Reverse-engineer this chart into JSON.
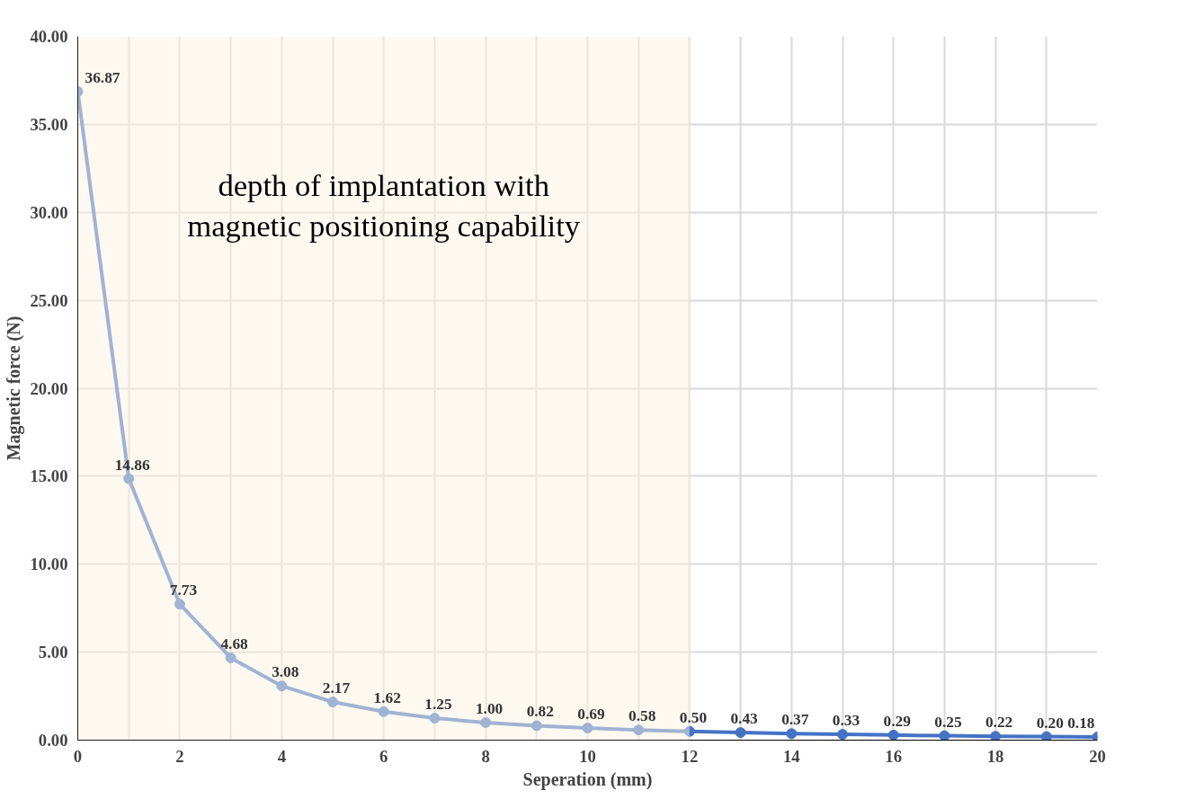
{
  "chart_data": {
    "type": "line",
    "xlabel": "Seperation (mm)",
    "ylabel": "Magnetic force (N)",
    "x": [
      0,
      1,
      2,
      3,
      4,
      5,
      6,
      7,
      8,
      9,
      10,
      11,
      12,
      13,
      14,
      15,
      16,
      17,
      18,
      19,
      20
    ],
    "series": [
      {
        "color": "#4472c4",
        "values": [
          36.87,
          14.86,
          7.73,
          4.68,
          3.08,
          2.17,
          1.62,
          1.25,
          1.0,
          0.82,
          0.69,
          0.58,
          0.5,
          0.43,
          0.37,
          0.33,
          0.29,
          0.25,
          0.22,
          0.2,
          0.18
        ],
        "value_labels": [
          "36.87",
          "14.86",
          "7.73",
          "4.68",
          "3.08",
          "2.17",
          "1.62",
          "1.25",
          "1.00",
          "0.82",
          "0.69",
          "0.58",
          "0.50",
          "0.43",
          "0.37",
          "0.33",
          "0.29",
          "0.25",
          "0.22",
          "0.20",
          "0.18"
        ]
      }
    ],
    "xlim": [
      0,
      20
    ],
    "xticks": [
      0,
      {
        "value": 1,
        "label": null
      },
      2,
      {
        "value": 3,
        "label": null
      },
      4,
      {
        "value": 5,
        "label": null
      },
      6,
      {
        "value": 7,
        "label": null
      },
      8,
      {
        "value": 9,
        "label": null
      },
      10,
      {
        "value": 11,
        "label": null
      },
      12,
      {
        "value": 13,
        "label": null
      },
      14,
      {
        "value": 15,
        "label": null
      },
      16,
      {
        "value": 17,
        "label": null
      },
      18,
      {
        "value": 19,
        "label": null
      },
      20
    ],
    "ylim": [
      0,
      40
    ],
    "yticks": [
      {
        "value": 0,
        "label": "0.00"
      },
      {
        "value": 5,
        "label": "5.00"
      },
      {
        "value": 10,
        "label": "10.00"
      },
      {
        "value": 15,
        "label": "15.00"
      },
      {
        "value": 20,
        "label": "20.00"
      },
      {
        "value": 25,
        "label": "25.00"
      },
      {
        "value": 30,
        "label": "30.00"
      },
      {
        "value": 35,
        "label": "35.00"
      },
      {
        "value": 40,
        "label": "40.00"
      }
    ],
    "bands": [
      {
        "axis": "x",
        "from": 0,
        "to": 12,
        "label": "depth of implantation with\nmagnetic positioning capability",
        "color": "#fdf3e1"
      }
    ],
    "grid": true,
    "marker": "circle",
    "line_style": "solid"
  }
}
